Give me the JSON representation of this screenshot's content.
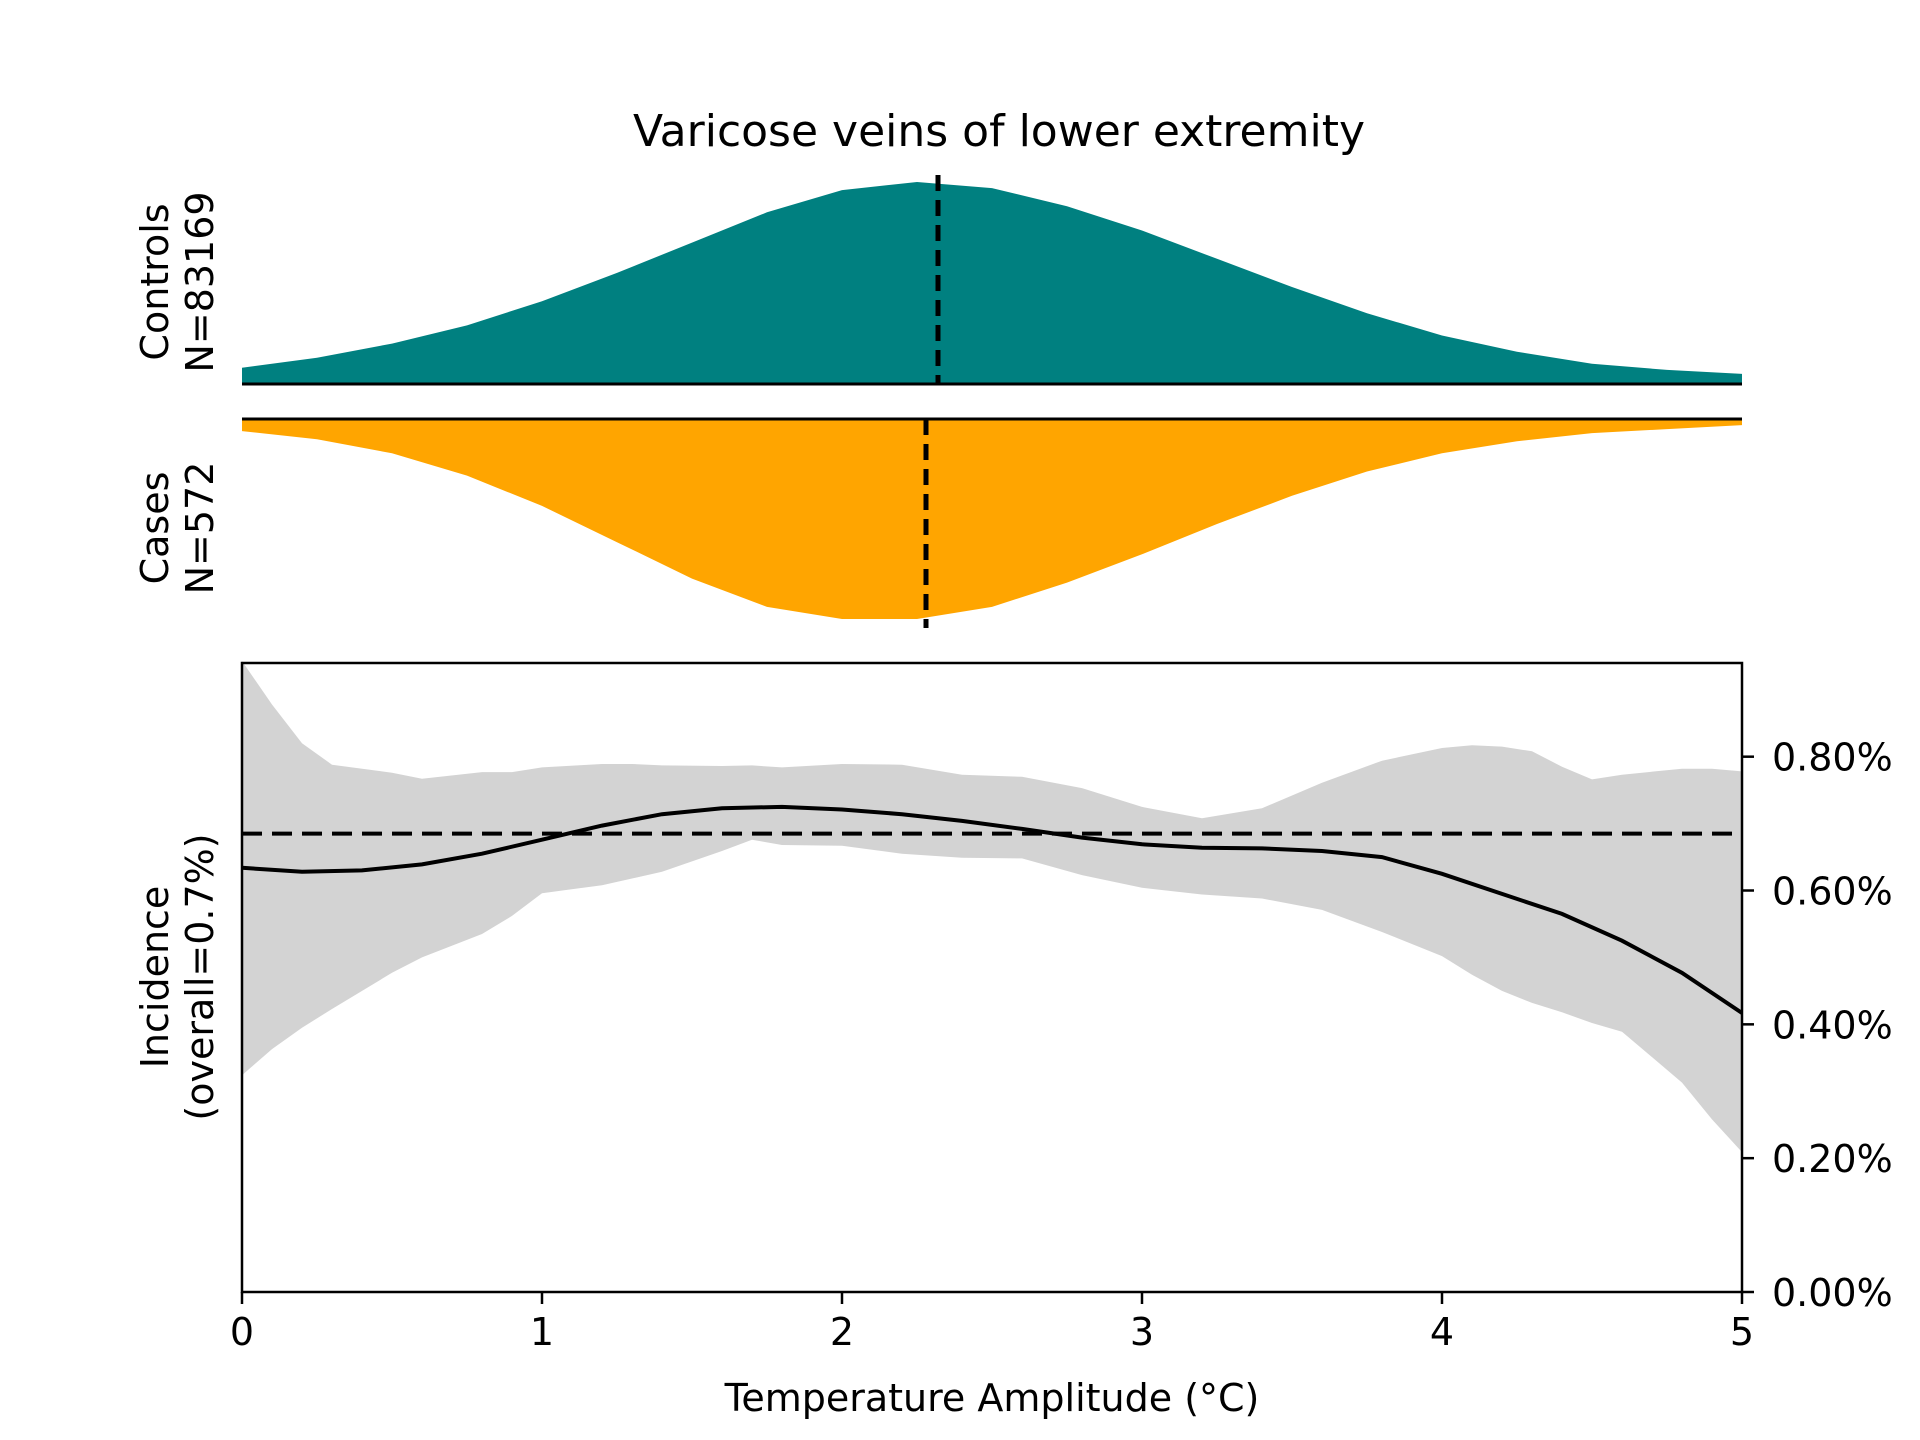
{
  "chart_data": [
    {
      "type": "area",
      "title": "Varicose veins of lower extremity",
      "ylabel": [
        "Controls",
        "N=83169"
      ],
      "xlim": [
        0,
        5
      ],
      "series": [
        {
          "name": "Controls",
          "color": "#008080",
          "x": [
            0,
            0.25,
            0.5,
            0.75,
            1.0,
            1.25,
            1.5,
            1.75,
            2.0,
            2.25,
            2.5,
            2.75,
            3.0,
            3.25,
            3.5,
            3.75,
            4.0,
            4.25,
            4.5,
            4.75,
            5.0
          ],
          "y": [
            0.08,
            0.13,
            0.2,
            0.29,
            0.41,
            0.55,
            0.7,
            0.85,
            0.96,
            1.0,
            0.97,
            0.88,
            0.76,
            0.62,
            0.48,
            0.35,
            0.24,
            0.16,
            0.1,
            0.07,
            0.05
          ]
        }
      ],
      "mean_marker_x": 2.32
    },
    {
      "type": "area",
      "ylabel": [
        "Cases",
        "N=572"
      ],
      "xlim": [
        0,
        5
      ],
      "series": [
        {
          "name": "Cases",
          "color": "#FFA500",
          "x": [
            0,
            0.25,
            0.5,
            0.75,
            1.0,
            1.25,
            1.5,
            1.75,
            2.0,
            2.25,
            2.5,
            2.75,
            3.0,
            3.25,
            3.5,
            3.75,
            4.0,
            4.25,
            4.5,
            4.75,
            5.0
          ],
          "y": [
            0.06,
            0.1,
            0.17,
            0.28,
            0.43,
            0.61,
            0.79,
            0.93,
            0.99,
            0.99,
            0.93,
            0.81,
            0.67,
            0.52,
            0.38,
            0.26,
            0.17,
            0.11,
            0.07,
            0.05,
            0.03
          ]
        }
      ],
      "mean_marker_x": 2.28
    },
    {
      "type": "line",
      "ylabel": [
        "Incidence",
        "(overall=0.7%)"
      ],
      "xlabel": "Temperature Amplitude (°C)",
      "xlim": [
        0,
        5
      ],
      "ylim": [
        0,
        0.0094
      ],
      "xticks": [
        0,
        1,
        2,
        3,
        4,
        5
      ],
      "xtick_labels": [
        "0",
        "1",
        "2",
        "3",
        "4",
        "5"
      ],
      "yticks": [
        0,
        0.002,
        0.004,
        0.006,
        0.008
      ],
      "ytick_labels": [
        "0.00%",
        "0.20%",
        "0.40%",
        "0.60%",
        "0.80%"
      ],
      "overall_rate": 0.00685,
      "series": [
        {
          "kind": "estimate",
          "color": "#000000",
          "x": [
            0,
            0.2,
            0.4,
            0.6,
            0.8,
            1.0,
            1.2,
            1.4,
            1.6,
            1.8,
            2.0,
            2.2,
            2.4,
            2.6,
            2.8,
            3.0,
            3.2,
            3.4,
            3.6,
            3.8,
            4.0,
            4.2,
            4.4,
            4.6,
            4.8,
            5.0
          ],
          "y": [
            0.00634,
            0.00628,
            0.0063,
            0.00639,
            0.00655,
            0.00676,
            0.00697,
            0.00714,
            0.00723,
            0.00725,
            0.00721,
            0.00714,
            0.00704,
            0.00692,
            0.00679,
            0.00669,
            0.00664,
            0.00663,
            0.00659,
            0.0065,
            0.00625,
            0.00595,
            0.00565,
            0.00525,
            0.00477,
            0.00417
          ]
        },
        {
          "kind": "ci-band",
          "color": "#D3D3D3",
          "x": [
            0,
            0.1,
            0.2,
            0.3,
            0.5,
            0.6,
            0.8,
            0.9,
            1.0,
            1.2,
            1.3,
            1.4,
            1.6,
            1.7,
            1.8,
            2.0,
            2.2,
            2.4,
            2.6,
            2.8,
            3.0,
            3.2,
            3.4,
            3.6,
            3.8,
            4.0,
            4.1,
            4.2,
            4.3,
            4.4,
            4.5,
            4.6,
            4.8,
            4.9,
            5.0
          ],
          "lower": [
            0.00324,
            0.00363,
            0.00395,
            0.00423,
            0.00477,
            0.005,
            0.00535,
            0.00562,
            0.00596,
            0.00608,
            0.00618,
            0.00628,
            0.00659,
            0.00676,
            0.00668,
            0.00667,
            0.00655,
            0.00649,
            0.00648,
            0.00623,
            0.00604,
            0.00594,
            0.00588,
            0.00571,
            0.00538,
            0.00502,
            0.00474,
            0.0045,
            0.00432,
            0.00418,
            0.00402,
            0.00389,
            0.00313,
            0.00258,
            0.00209
          ],
          "upper": [
            0.00943,
            0.00878,
            0.0082,
            0.00788,
            0.00776,
            0.00767,
            0.00777,
            0.00777,
            0.00784,
            0.00789,
            0.00789,
            0.00787,
            0.00786,
            0.00787,
            0.00784,
            0.00789,
            0.00788,
            0.00773,
            0.0077,
            0.00753,
            0.00725,
            0.00708,
            0.00723,
            0.00761,
            0.00794,
            0.00813,
            0.00817,
            0.00815,
            0.00808,
            0.00785,
            0.00766,
            0.00773,
            0.00782,
            0.00782,
            0.00778
          ]
        },
        {
          "kind": "overall-reference",
          "style": "dashed",
          "color": "#000000"
        }
      ]
    }
  ]
}
